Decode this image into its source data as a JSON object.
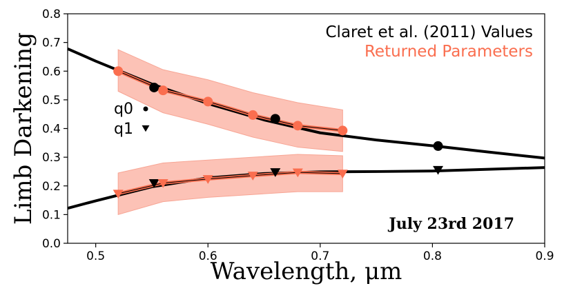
{
  "chart_data": {
    "type": "line",
    "xlabel": "Wavelength, μm",
    "ylabel": "Limb Darkening",
    "xlim": [
      0.475,
      0.9
    ],
    "ylim": [
      0.0,
      0.8
    ],
    "xticks": [
      0.5,
      0.6,
      0.7,
      0.8,
      0.9
    ],
    "xtick_labels": [
      "0.5",
      "0.6",
      "0.7",
      "0.8",
      "0.9"
    ],
    "yticks": [
      0.0,
      0.1,
      0.2,
      0.3,
      0.4,
      0.5,
      0.6,
      0.7,
      0.8
    ],
    "ytick_labels": [
      "0.0",
      "0.1",
      "0.2",
      "0.3",
      "0.4",
      "0.5",
      "0.6",
      "0.7",
      "0.8"
    ],
    "grid": false,
    "legend": [
      {
        "label": "Claret et al. (2011) Values",
        "color": "#000000"
      },
      {
        "label": "Returned Parameters",
        "color": "#fa6e4f"
      }
    ],
    "legend_placement": "top-right",
    "marker_key": [
      {
        "label": "q0",
        "marker": "circle"
      },
      {
        "label": "q1",
        "marker": "triangle-down"
      }
    ],
    "annotation": "July 23rd 2017",
    "colors": {
      "claret": "#000000",
      "returned": "#fa6e4f",
      "band_fill": "#fcc2b6",
      "band_edge": "#f7a594"
    },
    "series": [
      {
        "group": "Claret et al. (2011) Values",
        "param": "q0",
        "style": "curve",
        "x": [
          0.475,
          0.5,
          0.55,
          0.6,
          0.65,
          0.7,
          0.75,
          0.8,
          0.85,
          0.9
        ],
        "y": [
          0.678,
          0.635,
          0.555,
          0.487,
          0.43,
          0.385,
          0.36,
          0.34,
          0.318,
          0.297
        ]
      },
      {
        "group": "Claret et al. (2011) Values",
        "param": "q0",
        "style": "markers",
        "marker": "circle",
        "x": [
          0.552,
          0.66,
          0.805
        ],
        "y": [
          0.543,
          0.434,
          0.339
        ]
      },
      {
        "group": "Claret et al. (2011) Values",
        "param": "q1",
        "style": "curve",
        "x": [
          0.475,
          0.5,
          0.55,
          0.6,
          0.65,
          0.7,
          0.75,
          0.8,
          0.85,
          0.9
        ],
        "y": [
          0.122,
          0.148,
          0.197,
          0.228,
          0.243,
          0.249,
          0.25,
          0.252,
          0.258,
          0.264
        ]
      },
      {
        "group": "Claret et al. (2011) Values",
        "param": "q1",
        "style": "markers",
        "marker": "triangle-down",
        "x": [
          0.552,
          0.66,
          0.805
        ],
        "y": [
          0.21,
          0.248,
          0.256
        ]
      },
      {
        "group": "Returned Parameters",
        "param": "q0",
        "marker": "circle",
        "x": [
          0.52,
          0.56,
          0.6,
          0.64,
          0.68,
          0.72
        ],
        "y": [
          0.6,
          0.533,
          0.494,
          0.447,
          0.41,
          0.393
        ],
        "y_lower": [
          0.53,
          0.455,
          0.415,
          0.37,
          0.335,
          0.32
        ],
        "y_upper": [
          0.675,
          0.605,
          0.57,
          0.525,
          0.49,
          0.465
        ]
      },
      {
        "group": "Returned Parameters",
        "param": "q1",
        "marker": "triangle-down",
        "x": [
          0.52,
          0.56,
          0.6,
          0.64,
          0.68,
          0.72
        ],
        "y": [
          0.173,
          0.21,
          0.224,
          0.236,
          0.247,
          0.243
        ],
        "y_lower": [
          0.1,
          0.145,
          0.16,
          0.17,
          0.18,
          0.18
        ],
        "y_upper": [
          0.245,
          0.28,
          0.29,
          0.3,
          0.31,
          0.305
        ]
      }
    ]
  }
}
